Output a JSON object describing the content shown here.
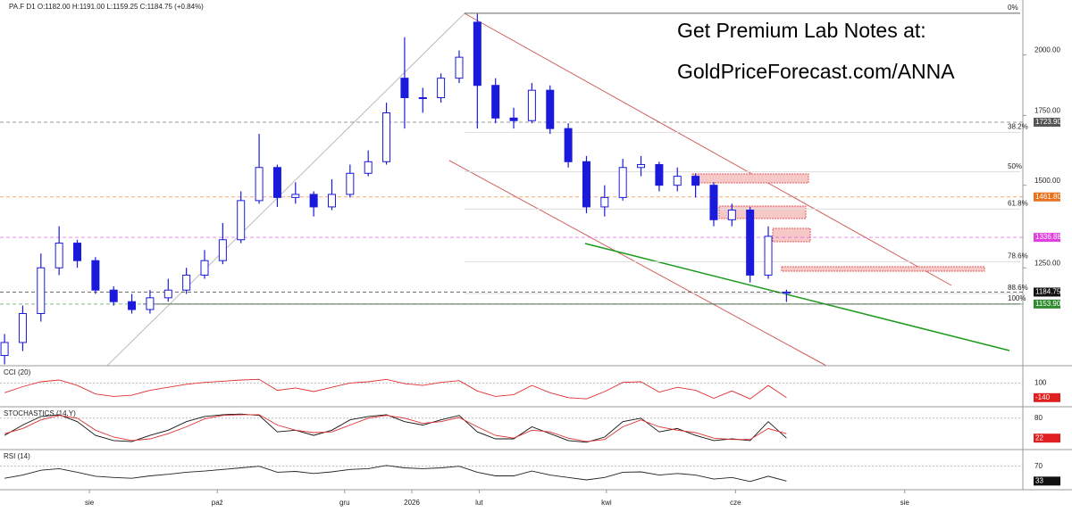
{
  "chart_data": [
    {
      "type": "candlestick",
      "header": "PA.F  D1  O:1182.00  H:1191.00  L:1159.25  C:1184.75  (+0.84%)",
      "banner": [
        "Get Premium Lab Notes at:",
        "GoldPriceForecast.com/ANNA"
      ],
      "log_scale": true,
      "color": "#1a1adc",
      "ylim": [
        1007,
        2258
      ],
      "yticks": [
        {
          "value": 1250,
          "label": "1250.00"
        },
        {
          "value": 1500,
          "label": "1500.00"
        },
        {
          "value": 1750,
          "label": "1750.00"
        },
        {
          "value": 2000,
          "label": "2000.00"
        }
      ],
      "xlim": [
        -0.25,
        56
      ],
      "xticks": [
        {
          "value": 4.67,
          "label": "sie"
        },
        {
          "value": 11.7,
          "label": "paź"
        },
        {
          "value": 18.7,
          "label": "gru"
        },
        {
          "value": 22.4,
          "label": "2026"
        },
        {
          "value": 26.1,
          "label": "lut"
        },
        {
          "value": 33.1,
          "label": "kwi"
        },
        {
          "value": 40.2,
          "label": "cze"
        },
        {
          "value": 49.5,
          "label": "sie"
        }
      ],
      "open": [
        1030,
        1060,
        1130,
        1250,
        1320,
        1270,
        1190,
        1160,
        1140,
        1170,
        1190,
        1230,
        1270,
        1330,
        1450,
        1560,
        1460,
        1470,
        1430,
        1470,
        1540,
        1580,
        1900,
        1820,
        1820,
        1900,
        2150,
        1870,
        1740,
        1730,
        1850,
        1700,
        1580,
        1430,
        1460,
        1560,
        1570,
        1500,
        1530,
        1500,
        1390,
        1420,
        1230,
        1182
      ],
      "high": [
        1080,
        1150,
        1290,
        1370,
        1330,
        1280,
        1200,
        1180,
        1190,
        1220,
        1250,
        1300,
        1380,
        1480,
        1680,
        1570,
        1510,
        1480,
        1520,
        1570,
        1620,
        1800,
        2080,
        1860,
        1920,
        2020,
        2190,
        1900,
        1780,
        1880,
        1870,
        1720,
        1600,
        1500,
        1590,
        1600,
        1580,
        1560,
        1540,
        1510,
        1440,
        1430,
        1370,
        1191
      ],
      "low": [
        1010,
        1040,
        1110,
        1230,
        1250,
        1180,
        1150,
        1130,
        1130,
        1160,
        1180,
        1220,
        1260,
        1320,
        1440,
        1430,
        1440,
        1400,
        1420,
        1460,
        1530,
        1570,
        1700,
        1760,
        1800,
        1880,
        1700,
        1720,
        1700,
        1720,
        1680,
        1560,
        1410,
        1400,
        1450,
        1530,
        1480,
        1480,
        1460,
        1370,
        1370,
        1210,
        1220,
        1159.25
      ],
      "close": [
        1060,
        1130,
        1250,
        1320,
        1270,
        1190,
        1160,
        1140,
        1170,
        1190,
        1230,
        1270,
        1330,
        1450,
        1560,
        1460,
        1470,
        1430,
        1470,
        1540,
        1580,
        1760,
        1820,
        1820,
        1900,
        1990,
        1870,
        1740,
        1730,
        1850,
        1700,
        1580,
        1430,
        1460,
        1560,
        1570,
        1500,
        1530,
        1500,
        1390,
        1420,
        1230,
        1340,
        1184.75
      ],
      "price_tags": [
        {
          "value": 1723.9,
          "label": "1723.90",
          "color": "#555555"
        },
        {
          "value": 1461.8,
          "label": "1461.80",
          "color": "#e8711c"
        },
        {
          "value": 1336.88,
          "label": "1336.88",
          "color": "#e040e0"
        },
        {
          "value": 1184.75,
          "label": "1184.75",
          "color": "#111111"
        },
        {
          "value": 1153.9,
          "label": "1153.90",
          "color": "#2e8b2e"
        }
      ],
      "fib_levels": [
        {
          "label": "0%",
          "value": 2193
        },
        {
          "label": "38.2%",
          "value": 1686
        },
        {
          "label": "50%",
          "value": 1545
        },
        {
          "label": "61.8%",
          "value": 1423
        },
        {
          "label": "78.6%",
          "value": 1267
        },
        {
          "label": "88.6%",
          "value": 1181
        },
        {
          "label": "100%",
          "value": 1154
        }
      ]
    },
    {
      "type": "line",
      "title": "CCI (20)",
      "ylim": [
        -260,
        355
      ],
      "yticks": [
        100
      ],
      "tag_color": "#e02020",
      "series": [
        {
          "color": "#e03030",
          "values": [
            -60,
            40,
            120,
            150,
            60,
            -80,
            -120,
            -100,
            -20,
            30,
            80,
            110,
            130,
            150,
            160,
            -20,
            20,
            -40,
            30,
            100,
            120,
            160,
            90,
            60,
            110,
            140,
            -30,
            -120,
            -90,
            60,
            -60,
            -140,
            -160,
            -40,
            110,
            120,
            -50,
            30,
            -20,
            -150,
            -30,
            -160,
            60,
            -140
          ]
        }
      ]
    },
    {
      "type": "line",
      "title": "STOCHASTICS (14,Y)",
      "ylim": [
        -6,
        108
      ],
      "yticks": [
        80
      ],
      "tag_color": "#e02020",
      "series": [
        {
          "color": "#111111",
          "values": [
            30,
            60,
            85,
            90,
            70,
            30,
            15,
            12,
            30,
            45,
            70,
            85,
            90,
            92,
            88,
            40,
            45,
            30,
            45,
            75,
            85,
            90,
            70,
            60,
            75,
            88,
            40,
            20,
            20,
            55,
            35,
            15,
            10,
            25,
            70,
            80,
            40,
            50,
            30,
            15,
            20,
            15,
            70,
            22
          ]
        },
        {
          "color": "#e03030",
          "values": [
            35,
            50,
            75,
            88,
            80,
            45,
            25,
            15,
            20,
            35,
            55,
            78,
            88,
            90,
            90,
            60,
            45,
            38,
            40,
            60,
            80,
            88,
            80,
            65,
            70,
            82,
            55,
            30,
            22,
            45,
            40,
            22,
            12,
            18,
            55,
            75,
            55,
            45,
            38,
            22,
            18,
            18,
            50,
            35
          ]
        }
      ]
    },
    {
      "type": "line",
      "title": "RSI (14)",
      "ylim": [
        16,
        107
      ],
      "yticks": [
        70
      ],
      "tag_color": "#111111",
      "series": [
        {
          "color": "#222222",
          "values": [
            40,
            48,
            60,
            64,
            55,
            45,
            42,
            40,
            46,
            50,
            55,
            58,
            62,
            66,
            70,
            55,
            57,
            52,
            56,
            62,
            64,
            72,
            66,
            64,
            66,
            70,
            55,
            46,
            46,
            58,
            48,
            42,
            36,
            42,
            55,
            56,
            48,
            52,
            48,
            38,
            42,
            32,
            45,
            33
          ]
        }
      ]
    }
  ]
}
